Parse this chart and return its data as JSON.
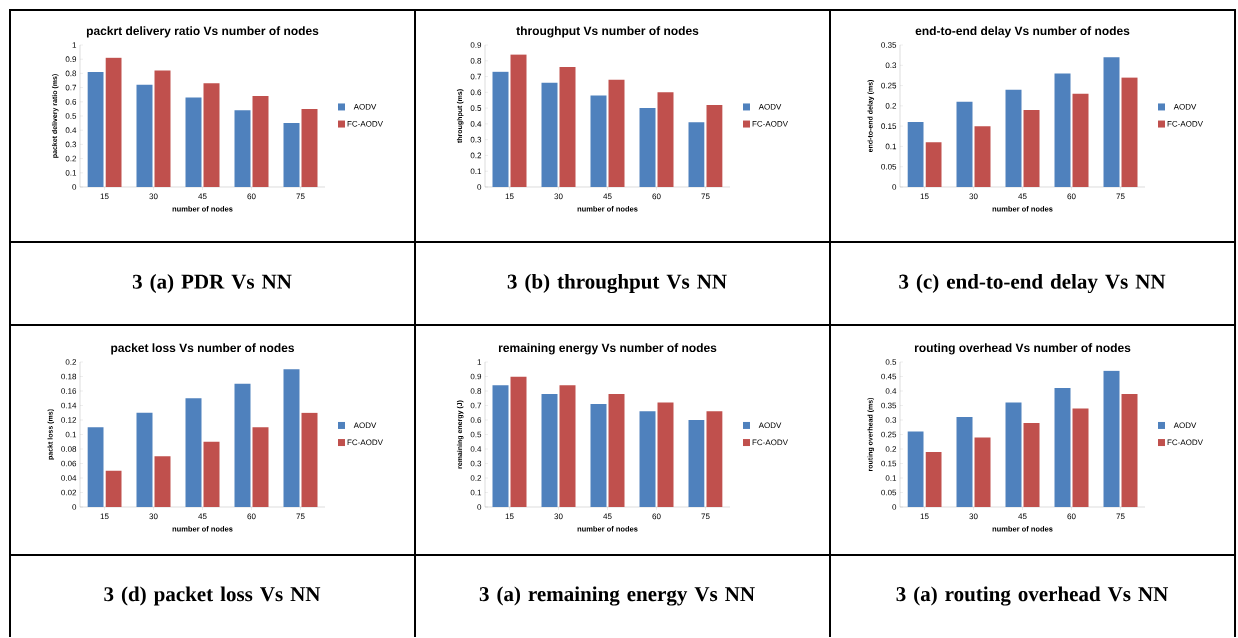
{
  "chart_data": [
    {
      "type": "bar",
      "title": "packrt delivery ratio Vs number of nodes",
      "xlabel": "number of nodes",
      "ylabel": "packet delivery ratio (ms)",
      "categories": [
        "15",
        "30",
        "45",
        "60",
        "75"
      ],
      "series": [
        {
          "name": "AODV",
          "color": "#4f81bd",
          "values": [
            0.81,
            0.72,
            0.63,
            0.54,
            0.45
          ]
        },
        {
          "name": "FC-AODV",
          "color": "#c0504d",
          "values": [
            0.91,
            0.82,
            0.73,
            0.64,
            0.55
          ]
        }
      ],
      "ylim": [
        0,
        1
      ],
      "yticks": [
        0,
        0.1,
        0.2,
        0.3,
        0.4,
        0.5,
        0.6,
        0.7,
        0.8,
        0.9,
        1
      ],
      "legend": "right",
      "annotations": [
        "3 (a) PDR Vs NN"
      ]
    },
    {
      "type": "bar",
      "title": "throughput Vs number of nodes",
      "xlabel": "number of nodes",
      "ylabel": "throughput (ms)",
      "categories": [
        "15",
        "30",
        "45",
        "60",
        "75"
      ],
      "series": [
        {
          "name": "AODV",
          "color": "#4f81bd",
          "values": [
            0.73,
            0.66,
            0.58,
            0.5,
            0.41
          ]
        },
        {
          "name": "FC-AODV",
          "color": "#c0504d",
          "values": [
            0.84,
            0.76,
            0.68,
            0.6,
            0.52
          ]
        }
      ],
      "ylim": [
        0,
        0.9
      ],
      "yticks": [
        0,
        0.1,
        0.2,
        0.3,
        0.4,
        0.5,
        0.6,
        0.7,
        0.8,
        0.9
      ],
      "legend": "right",
      "annotations": [
        "3 (b) throughput Vs NN"
      ]
    },
    {
      "type": "bar",
      "title": "end-to-end delay Vs number of nodes",
      "xlabel": "number of nodes",
      "ylabel": "end-to-end delay (ms)",
      "categories": [
        "15",
        "30",
        "45",
        "60",
        "75"
      ],
      "series": [
        {
          "name": "AODV",
          "color": "#4f81bd",
          "values": [
            0.16,
            0.21,
            0.24,
            0.28,
            0.32
          ]
        },
        {
          "name": "FC-AODV",
          "color": "#c0504d",
          "values": [
            0.11,
            0.15,
            0.19,
            0.23,
            0.27
          ]
        }
      ],
      "ylim": [
        0,
        0.35
      ],
      "yticks": [
        0,
        0.05,
        0.1,
        0.15,
        0.2,
        0.25,
        0.3,
        0.35
      ],
      "legend": "right",
      "annotations": [
        "3 (c) end-to-end delay Vs NN"
      ]
    },
    {
      "type": "bar",
      "title": "packet loss Vs number of nodes",
      "xlabel": "number of nodes",
      "ylabel": "packt loss (ms)",
      "categories": [
        "15",
        "30",
        "45",
        "60",
        "75"
      ],
      "series": [
        {
          "name": "AODV",
          "color": "#4f81bd",
          "values": [
            0.11,
            0.13,
            0.15,
            0.17,
            0.19
          ]
        },
        {
          "name": "FC-AODV",
          "color": "#c0504d",
          "values": [
            0.05,
            0.07,
            0.09,
            0.11,
            0.13
          ]
        }
      ],
      "ylim": [
        0,
        0.2
      ],
      "yticks": [
        0,
        0.02,
        0.04,
        0.06,
        0.08,
        0.1,
        0.12,
        0.14,
        0.16,
        0.18,
        0.2
      ],
      "legend": "right",
      "annotations": [
        "3 (d) packet loss Vs NN"
      ]
    },
    {
      "type": "bar",
      "title": "remaining energy Vs number of nodes",
      "xlabel": "number of nodes",
      "ylabel": "remaining energy (J)",
      "categories": [
        "15",
        "30",
        "45",
        "60",
        "75"
      ],
      "series": [
        {
          "name": "AODV",
          "color": "#4f81bd",
          "values": [
            0.84,
            0.78,
            0.71,
            0.66,
            0.6
          ]
        },
        {
          "name": "FC-AODV",
          "color": "#c0504d",
          "values": [
            0.9,
            0.84,
            0.78,
            0.72,
            0.66
          ]
        }
      ],
      "ylim": [
        0,
        1
      ],
      "yticks": [
        0,
        0.1,
        0.2,
        0.3,
        0.4,
        0.5,
        0.6,
        0.7,
        0.8,
        0.9,
        1
      ],
      "legend": "right",
      "annotations": [
        "3 (a) remaining energy Vs NN"
      ]
    },
    {
      "type": "bar",
      "title": "routing overhead Vs number of nodes",
      "xlabel": "number of nodes",
      "ylabel": "routing overhead (ms)",
      "categories": [
        "15",
        "30",
        "45",
        "60",
        "75"
      ],
      "series": [
        {
          "name": "AODV",
          "color": "#4f81bd",
          "values": [
            0.26,
            0.31,
            0.36,
            0.41,
            0.47
          ]
        },
        {
          "name": "FC-AODV",
          "color": "#c0504d",
          "values": [
            0.19,
            0.24,
            0.29,
            0.34,
            0.39
          ]
        }
      ],
      "ylim": [
        0,
        0.5
      ],
      "yticks": [
        0,
        0.05,
        0.1,
        0.15,
        0.2,
        0.25,
        0.3,
        0.35,
        0.4,
        0.45,
        0.5
      ],
      "legend": "right",
      "annotations": [
        "3 (a) routing overhead Vs NN"
      ]
    }
  ]
}
